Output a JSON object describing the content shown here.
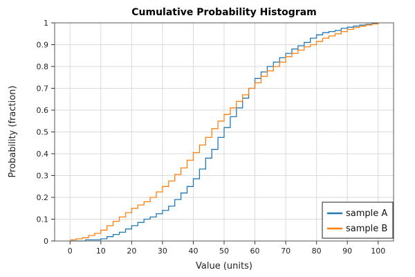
{
  "chart_data": {
    "type": "line",
    "title": "Cumulative Probability Histogram",
    "xlabel": "Value (units)",
    "ylabel": "Probability (fraction)",
    "xlim": [
      -5,
      105
    ],
    "ylim": [
      0,
      1
    ],
    "xticks": [
      "0",
      "10",
      "20",
      "30",
      "40",
      "50",
      "60",
      "70",
      "80",
      "90",
      "100"
    ],
    "yticks": [
      "0",
      "0.1",
      "0.2",
      "0.3",
      "0.4",
      "0.5",
      "0.6",
      "0.7",
      "0.8",
      "0.9",
      "1"
    ],
    "grid": true,
    "legend_position": "bottom-right",
    "series": [
      {
        "name": "sample A",
        "color": "#1f77b4",
        "x": [
          0,
          5,
          10,
          12,
          14,
          16,
          18,
          20,
          22,
          24,
          26,
          28,
          30,
          32,
          34,
          36,
          38,
          40,
          42,
          44,
          46,
          48,
          50,
          52,
          54,
          56,
          58,
          60,
          62,
          64,
          66,
          68,
          70,
          72,
          74,
          76,
          78,
          80,
          82,
          84,
          86,
          88,
          90,
          92,
          94,
          96,
          98,
          100
        ],
        "y": [
          0,
          0.005,
          0.01,
          0.02,
          0.03,
          0.04,
          0.055,
          0.07,
          0.085,
          0.1,
          0.11,
          0.125,
          0.14,
          0.16,
          0.19,
          0.22,
          0.25,
          0.285,
          0.33,
          0.38,
          0.42,
          0.475,
          0.52,
          0.57,
          0.61,
          0.655,
          0.7,
          0.745,
          0.775,
          0.8,
          0.82,
          0.84,
          0.86,
          0.88,
          0.895,
          0.91,
          0.93,
          0.945,
          0.955,
          0.96,
          0.965,
          0.975,
          0.98,
          0.985,
          0.99,
          0.993,
          0.997,
          1.0
        ]
      },
      {
        "name": "sample B",
        "color": "#ff7f0e",
        "x": [
          0,
          2,
          4,
          6,
          8,
          10,
          12,
          14,
          16,
          18,
          20,
          22,
          24,
          26,
          28,
          30,
          32,
          34,
          36,
          38,
          40,
          42,
          44,
          46,
          48,
          50,
          52,
          54,
          56,
          58,
          60,
          62,
          64,
          66,
          68,
          70,
          72,
          74,
          76,
          78,
          80,
          82,
          84,
          86,
          88,
          90,
          92,
          94,
          96,
          98,
          100
        ],
        "y": [
          0.005,
          0.01,
          0.015,
          0.025,
          0.035,
          0.05,
          0.07,
          0.09,
          0.11,
          0.13,
          0.15,
          0.165,
          0.18,
          0.2,
          0.225,
          0.25,
          0.275,
          0.305,
          0.335,
          0.37,
          0.405,
          0.44,
          0.475,
          0.515,
          0.55,
          0.58,
          0.61,
          0.64,
          0.67,
          0.7,
          0.725,
          0.755,
          0.78,
          0.8,
          0.82,
          0.845,
          0.86,
          0.875,
          0.89,
          0.9,
          0.915,
          0.93,
          0.94,
          0.95,
          0.96,
          0.97,
          0.978,
          0.985,
          0.99,
          0.995,
          1.0
        ]
      }
    ]
  }
}
